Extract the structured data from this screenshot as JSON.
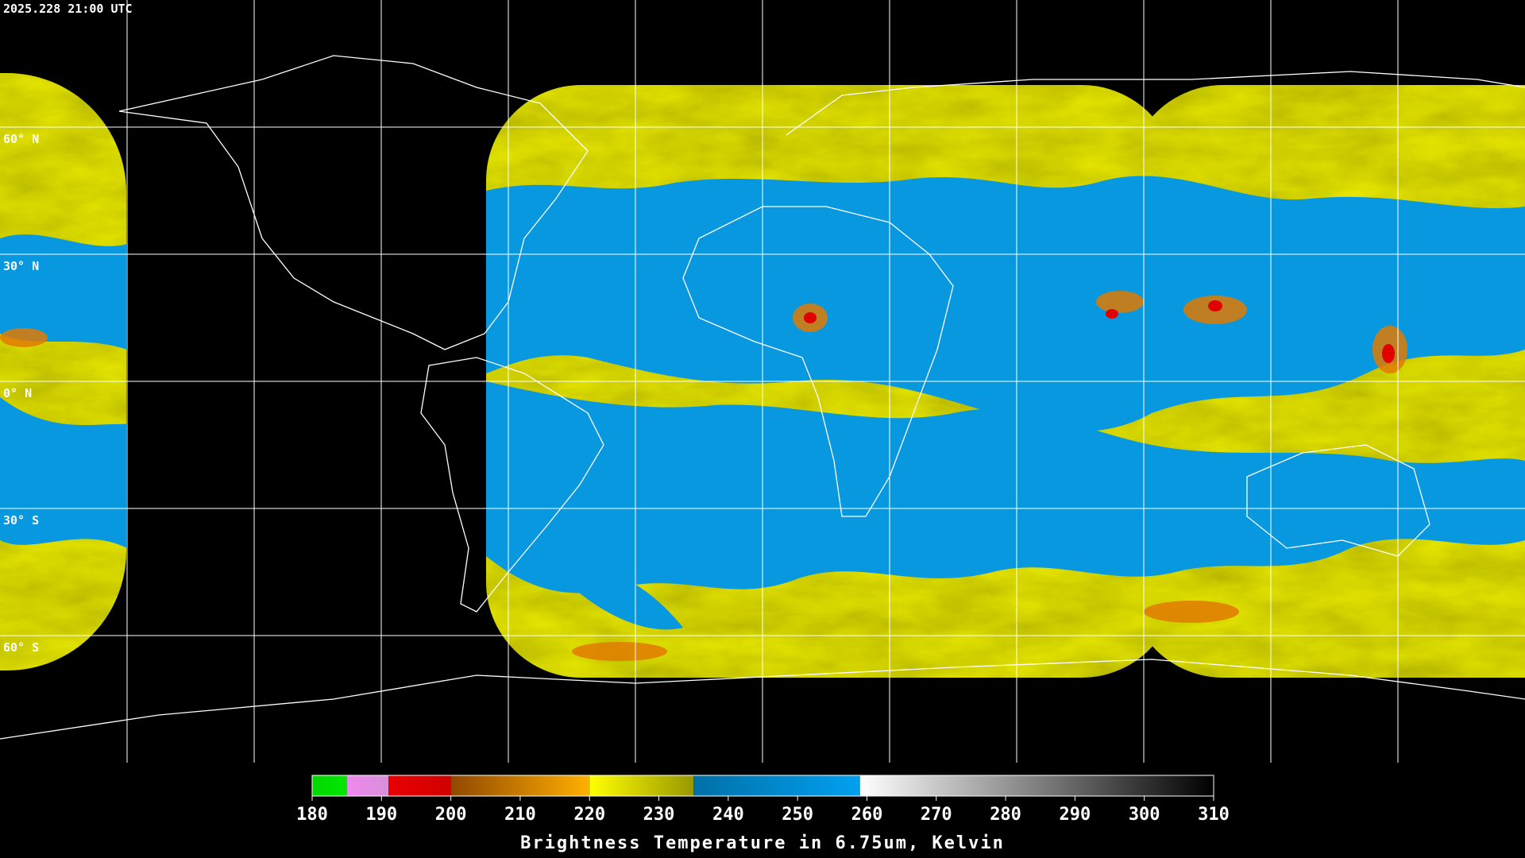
{
  "timestamp": "2025.228 21:00 UTC",
  "graticule": {
    "lats": [
      {
        "value": 60,
        "label": "60° N"
      },
      {
        "value": 30,
        "label": "30° N"
      },
      {
        "value": 0,
        "label": "0° N"
      },
      {
        "value": -30,
        "label": "30° S"
      },
      {
        "value": -60,
        "label": "60° S"
      }
    ]
  },
  "colorbar": {
    "title": "Brightness Temperature in 6.75um, Kelvin",
    "lim": [
      180,
      310
    ],
    "ticks": [
      180,
      190,
      200,
      210,
      220,
      230,
      240,
      250,
      260,
      270,
      280,
      290,
      300,
      310
    ],
    "segments": [
      {
        "from": 180,
        "to": 185,
        "colors": [
          "#00d800",
          "#00e800"
        ]
      },
      {
        "from": 185,
        "to": 191,
        "colors": [
          "#f088f0",
          "#d890d8"
        ]
      },
      {
        "from": 191,
        "to": 200,
        "colors": [
          "#e80000",
          "#d00000"
        ]
      },
      {
        "from": 200,
        "to": 220,
        "colors": [
          "#904800",
          "#ffb000"
        ]
      },
      {
        "from": 220,
        "to": 235,
        "colors": [
          "#ffff00",
          "#989800"
        ]
      },
      {
        "from": 235,
        "to": 259,
        "colors": [
          "#0070a8",
          "#00a0f0"
        ]
      },
      {
        "from": 259,
        "to": 310,
        "colors": [
          "#ffffff",
          "#000000"
        ]
      }
    ]
  }
}
